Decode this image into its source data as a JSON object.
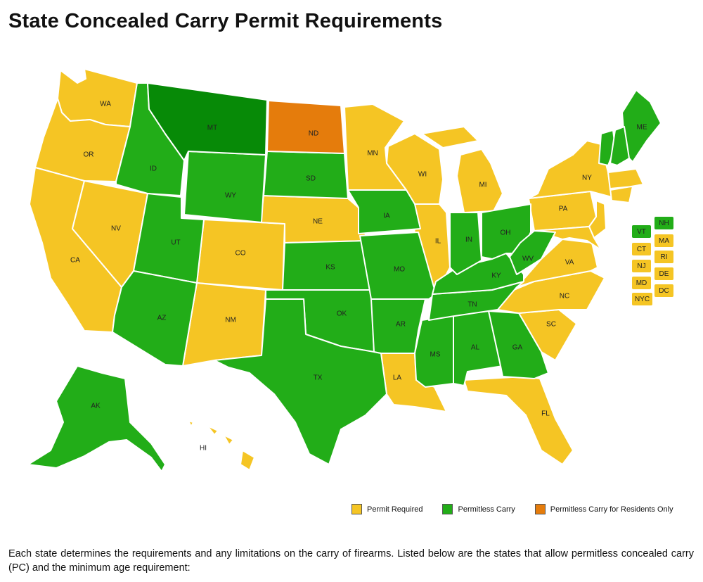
{
  "title": "State Concealed Carry Permit Requirements",
  "colors": {
    "permit": "#f5c524",
    "permitless": "#22ad18",
    "residents": "#e57c0c",
    "montana": "#078a07"
  },
  "legend": [
    {
      "label": "Permit Required",
      "color": "#f5c524"
    },
    {
      "label": "Permitless Carry",
      "color": "#22ad18"
    },
    {
      "label": "Permitless Carry for Residents Only",
      "color": "#e57c0c"
    }
  ],
  "states": {
    "WA": "WA",
    "OR": "OR",
    "CA": "CA",
    "ID": "ID",
    "NV": "NV",
    "MT": "MT",
    "WY": "WY",
    "UT": "UT",
    "AZ": "AZ",
    "CO": "CO",
    "NM": "NM",
    "ND": "ND",
    "SD": "SD",
    "NE": "NE",
    "KS": "KS",
    "OK": "OK",
    "TX": "TX",
    "MN": "MN",
    "IA": "IA",
    "MO": "MO",
    "AR": "AR",
    "LA": "LA",
    "WI": "WI",
    "IL": "IL",
    "MI": "MI",
    "IN": "IN",
    "OH": "OH",
    "KY": "KY",
    "TN": "TN",
    "MS": "MS",
    "AL": "AL",
    "GA": "GA",
    "FL": "FL",
    "SC": "SC",
    "NC": "NC",
    "VA": "VA",
    "WV": "WV",
    "PA": "PA",
    "NY": "NY",
    "ME": "ME",
    "AK": "AK",
    "HI": "HI"
  },
  "side_chips": [
    {
      "label": "VT",
      "status": "permitless"
    },
    {
      "label": "NH",
      "status": "permitless"
    },
    {
      "label": "CT",
      "status": "permit"
    },
    {
      "label": "MA",
      "status": "permit"
    },
    {
      "label": "NJ",
      "status": "permit"
    },
    {
      "label": "RI",
      "status": "permit"
    },
    {
      "label": "MD",
      "status": "permit"
    },
    {
      "label": "DE",
      "status": "permit"
    },
    {
      "label": "NYC",
      "status": "permit"
    },
    {
      "label": "DC",
      "status": "permit"
    }
  ],
  "description": "Each state determines the requirements and any limitations on the carry of firearms. Listed below are the states that allow permitless concealed carry (PC) and the minimum age requirement:"
}
